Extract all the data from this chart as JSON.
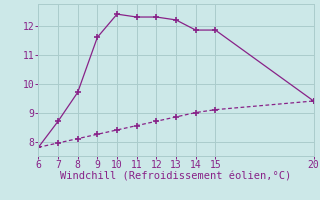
{
  "xlabel": "Windchill (Refroidissement éolien,°C)",
  "line1_x": [
    6,
    7,
    8,
    9,
    10,
    11,
    12,
    13,
    14,
    15,
    20
  ],
  "line1_y": [
    7.8,
    8.7,
    9.7,
    11.6,
    12.4,
    12.3,
    12.3,
    12.2,
    11.85,
    11.85,
    9.4
  ],
  "line2_x": [
    6,
    7,
    8,
    9,
    10,
    11,
    12,
    13,
    14,
    15,
    20
  ],
  "line2_y": [
    7.8,
    7.95,
    8.1,
    8.25,
    8.4,
    8.55,
    8.7,
    8.85,
    9.0,
    9.1,
    9.4
  ],
  "line_color": "#882288",
  "bg_color": "#cce8e8",
  "grid_color": "#aacccc",
  "xlim": [
    6,
    20
  ],
  "ylim": [
    7.5,
    12.75
  ],
  "xticks": [
    6,
    7,
    8,
    9,
    10,
    11,
    12,
    13,
    14,
    15,
    20
  ],
  "yticks": [
    8,
    9,
    10,
    11,
    12
  ],
  "tick_fontsize": 7,
  "xlabel_fontsize": 7.5,
  "marker": "+",
  "markersize": 4,
  "linewidth": 0.9
}
